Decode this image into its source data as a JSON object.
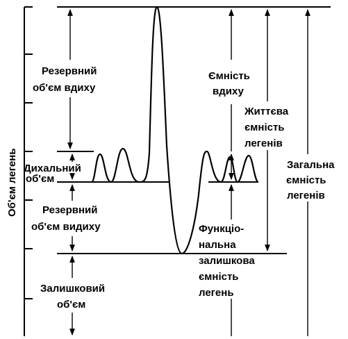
{
  "axis_label": "Об'єм легень",
  "labels": {
    "inspiratory_reserve": [
      "Резервний",
      "об'єм вдиху"
    ],
    "tidal": [
      "Дихальний",
      "об'єм"
    ],
    "expiratory_reserve": [
      "Резервний",
      "об'єм видиху"
    ],
    "residual": [
      "Залишковий",
      "об'єм"
    ],
    "inspiratory_capacity": [
      "Ємність",
      "вдиху"
    ],
    "vital_capacity": [
      "Життєва",
      "ємність",
      "легенів"
    ],
    "total_capacity": [
      "Загальна",
      "ємність",
      "легенів"
    ],
    "frc": [
      "Функціо-",
      "нальна",
      "залишкова",
      "ємність",
      "легень"
    ]
  }
}
